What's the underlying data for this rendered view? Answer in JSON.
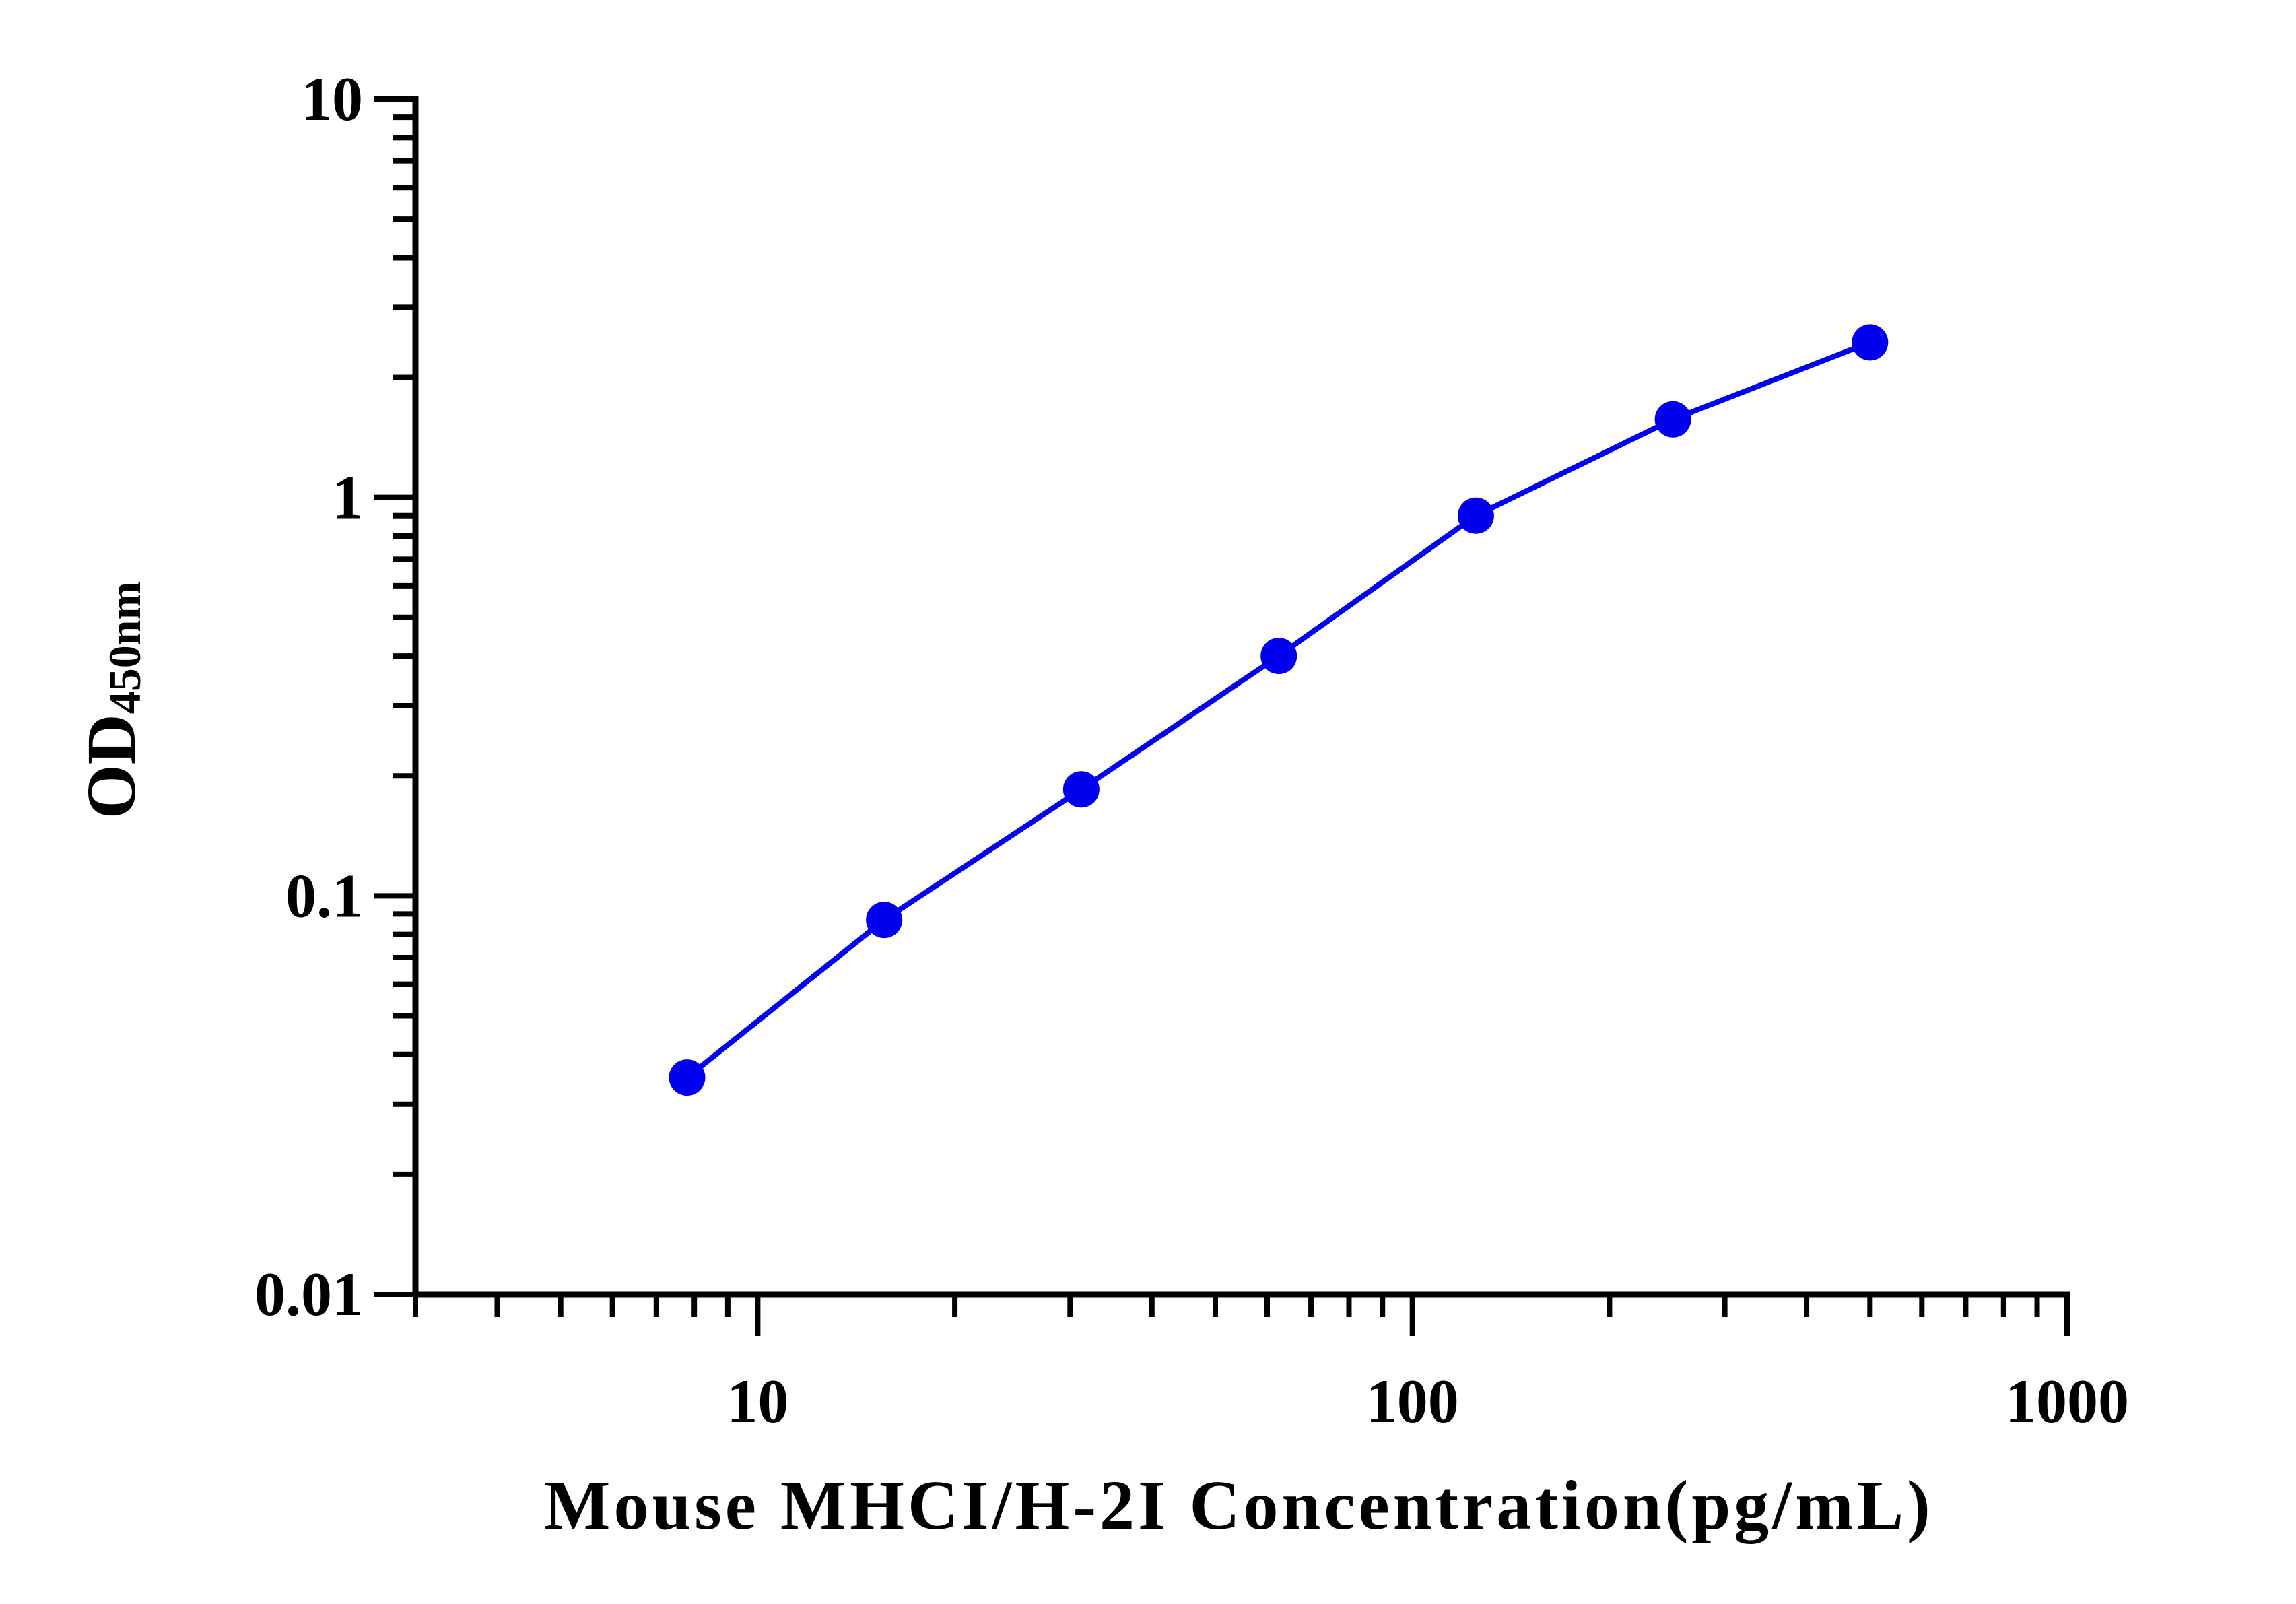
{
  "chart_data": {
    "type": "line",
    "title": "",
    "xlabel": "Mouse MHCI/H-2I Concentration(pg/mL)",
    "ylabel": {
      "main": "OD",
      "subscript": "450nm"
    },
    "x_scale": "log",
    "y_scale": "log",
    "xlim": [
      3,
      1000
    ],
    "ylim": [
      0.01,
      10
    ],
    "x_ticks": [
      {
        "value": 10,
        "label": "10"
      },
      {
        "value": 100,
        "label": "100"
      },
      {
        "value": 1000,
        "label": "1000"
      }
    ],
    "y_ticks": [
      {
        "value": 0.01,
        "label": "0.01"
      },
      {
        "value": 0.1,
        "label": "0.1"
      },
      {
        "value": 1,
        "label": "1"
      },
      {
        "value": 10,
        "label": "10"
      }
    ],
    "grid": false,
    "legend": "none",
    "series": [
      {
        "color": "#0000ee",
        "marker": "circle",
        "x": [
          7.8,
          15.6,
          31.2,
          62.5,
          125,
          250,
          500
        ],
        "y": [
          0.035,
          0.087,
          0.185,
          0.4,
          0.9,
          1.57,
          2.45
        ]
      }
    ]
  }
}
